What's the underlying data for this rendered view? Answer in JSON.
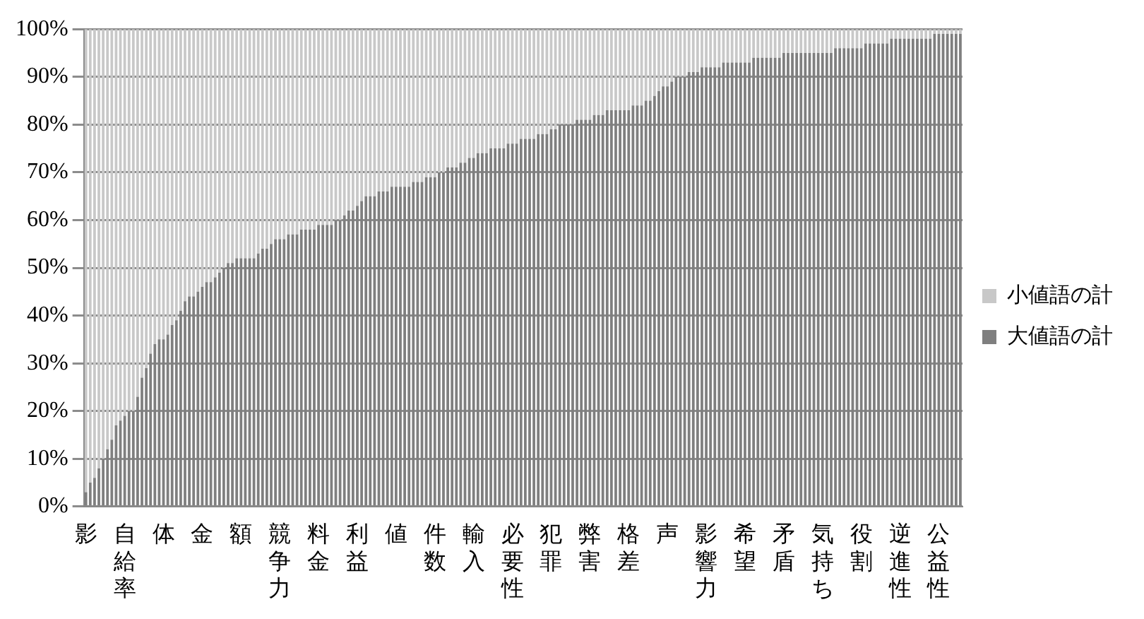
{
  "chart_data": {
    "type": "bar",
    "stacked": true,
    "legend": "right",
    "grid": "y",
    "categories": [
      "影",
      null,
      null,
      null,
      null,
      null,
      null,
      null,
      null,
      "自給率",
      null,
      null,
      null,
      null,
      null,
      null,
      null,
      null,
      "体",
      null,
      null,
      null,
      null,
      null,
      null,
      null,
      null,
      "金",
      null,
      null,
      null,
      null,
      null,
      null,
      null,
      null,
      "額",
      null,
      null,
      null,
      null,
      null,
      null,
      null,
      null,
      "競争力",
      null,
      null,
      null,
      null,
      null,
      null,
      null,
      null,
      "料金",
      null,
      null,
      null,
      null,
      null,
      null,
      null,
      null,
      "利益",
      null,
      null,
      null,
      null,
      null,
      null,
      null,
      null,
      "値",
      null,
      null,
      null,
      null,
      null,
      null,
      null,
      null,
      "件数",
      null,
      null,
      null,
      null,
      null,
      null,
      null,
      null,
      "輸入",
      null,
      null,
      null,
      null,
      null,
      null,
      null,
      null,
      "必要性",
      null,
      null,
      null,
      null,
      null,
      null,
      null,
      null,
      "犯罪",
      null,
      null,
      null,
      null,
      null,
      null,
      null,
      null,
      "弊害",
      null,
      null,
      null,
      null,
      null,
      null,
      null,
      null,
      "格差",
      null,
      null,
      null,
      null,
      null,
      null,
      null,
      null,
      "声",
      null,
      null,
      null,
      null,
      null,
      null,
      null,
      null,
      "影響力",
      null,
      null,
      null,
      null,
      null,
      null,
      null,
      null,
      "希望",
      null,
      null,
      null,
      null,
      null,
      null,
      null,
      null,
      "矛盾",
      null,
      null,
      null,
      null,
      null,
      null,
      null,
      null,
      "気持ち",
      null,
      null,
      null,
      null,
      null,
      null,
      null,
      null,
      "役割",
      null,
      null,
      null,
      null,
      null,
      null,
      null,
      null,
      "逆進性",
      null,
      null,
      null,
      null,
      null,
      null,
      null,
      null,
      "公益性",
      null,
      null,
      null,
      null,
      null
    ],
    "series": [
      {
        "name": "大値語の計",
        "color": "#7f7f7f",
        "values": [
          3,
          5,
          6,
          8,
          10,
          12,
          14,
          17,
          18,
          19,
          20,
          20,
          23,
          27,
          29,
          32,
          34,
          35,
          35,
          36,
          38,
          39,
          41,
          43,
          44,
          44,
          45,
          46,
          47,
          47,
          48,
          49,
          50,
          51,
          51,
          52,
          52,
          52,
          52,
          52,
          53,
          54,
          54,
          55,
          56,
          56,
          56,
          57,
          57,
          57,
          58,
          58,
          58,
          58,
          59,
          59,
          59,
          59,
          60,
          60,
          61,
          62,
          62,
          63,
          64,
          65,
          65,
          65,
          66,
          66,
          66,
          67,
          67,
          67,
          67,
          67,
          68,
          68,
          68,
          69,
          69,
          69,
          70,
          70,
          71,
          71,
          71,
          72,
          72,
          73,
          73,
          74,
          74,
          74,
          75,
          75,
          75,
          75,
          76,
          76,
          76,
          77,
          77,
          77,
          77,
          78,
          78,
          78,
          79,
          79,
          80,
          80,
          80,
          80,
          81,
          81,
          81,
          81,
          82,
          82,
          82,
          83,
          83,
          83,
          83,
          83,
          83,
          84,
          84,
          84,
          85,
          85,
          86,
          87,
          88,
          88,
          89,
          90,
          90,
          90,
          91,
          91,
          91,
          92,
          92,
          92,
          92,
          92,
          93,
          93,
          93,
          93,
          93,
          93,
          93,
          94,
          94,
          94,
          94,
          94,
          94,
          94,
          95,
          95,
          95,
          95,
          95,
          95,
          95,
          95,
          95,
          95,
          95,
          95,
          96,
          96,
          96,
          96,
          96,
          96,
          96,
          97,
          97,
          97,
          97,
          97,
          97,
          98,
          98,
          98,
          98,
          98,
          98,
          98,
          98,
          98,
          98,
          99,
          99,
          99,
          99,
          99,
          99,
          99
        ]
      },
      {
        "name": "小値語の計",
        "color": "#c8c8c8",
        "values": [
          97,
          95,
          94,
          92,
          90,
          88,
          86,
          83,
          82,
          81,
          80,
          80,
          77,
          73,
          71,
          68,
          66,
          65,
          65,
          64,
          62,
          61,
          59,
          57,
          56,
          56,
          55,
          54,
          53,
          53,
          52,
          51,
          50,
          49,
          49,
          48,
          48,
          48,
          48,
          48,
          47,
          46,
          46,
          45,
          44,
          44,
          44,
          43,
          43,
          43,
          42,
          42,
          42,
          42,
          41,
          41,
          41,
          41,
          40,
          40,
          39,
          38,
          38,
          37,
          36,
          35,
          35,
          35,
          34,
          34,
          34,
          33,
          33,
          33,
          33,
          33,
          32,
          32,
          32,
          31,
          31,
          31,
          30,
          30,
          29,
          29,
          29,
          28,
          28,
          27,
          27,
          26,
          26,
          26,
          25,
          25,
          25,
          25,
          24,
          24,
          24,
          23,
          23,
          23,
          23,
          22,
          22,
          22,
          21,
          21,
          20,
          20,
          20,
          20,
          19,
          19,
          19,
          19,
          18,
          18,
          18,
          17,
          17,
          17,
          17,
          17,
          17,
          16,
          16,
          16,
          15,
          15,
          14,
          13,
          12,
          12,
          11,
          10,
          10,
          10,
          9,
          9,
          9,
          8,
          8,
          8,
          8,
          8,
          7,
          7,
          7,
          7,
          7,
          7,
          7,
          6,
          6,
          6,
          6,
          6,
          6,
          6,
          5,
          5,
          5,
          5,
          5,
          5,
          5,
          5,
          5,
          5,
          5,
          5,
          4,
          4,
          4,
          4,
          4,
          4,
          4,
          3,
          3,
          3,
          3,
          3,
          3,
          2,
          2,
          2,
          2,
          2,
          2,
          2,
          2,
          2,
          2,
          1,
          1,
          1,
          1,
          1,
          1,
          1
        ]
      }
    ],
    "ylim": [
      0,
      100
    ],
    "yticks": [
      {
        "value": 0,
        "label": "0%"
      },
      {
        "value": 10,
        "label": "10%"
      },
      {
        "value": 20,
        "label": "20%"
      },
      {
        "value": 30,
        "label": "30%"
      },
      {
        "value": 40,
        "label": "40%"
      },
      {
        "value": 50,
        "label": "50%"
      },
      {
        "value": 60,
        "label": "60%"
      },
      {
        "value": 70,
        "label": "70%"
      },
      {
        "value": 80,
        "label": "80%"
      },
      {
        "value": 90,
        "label": "90%"
      },
      {
        "value": 100,
        "label": "100%"
      }
    ]
  }
}
